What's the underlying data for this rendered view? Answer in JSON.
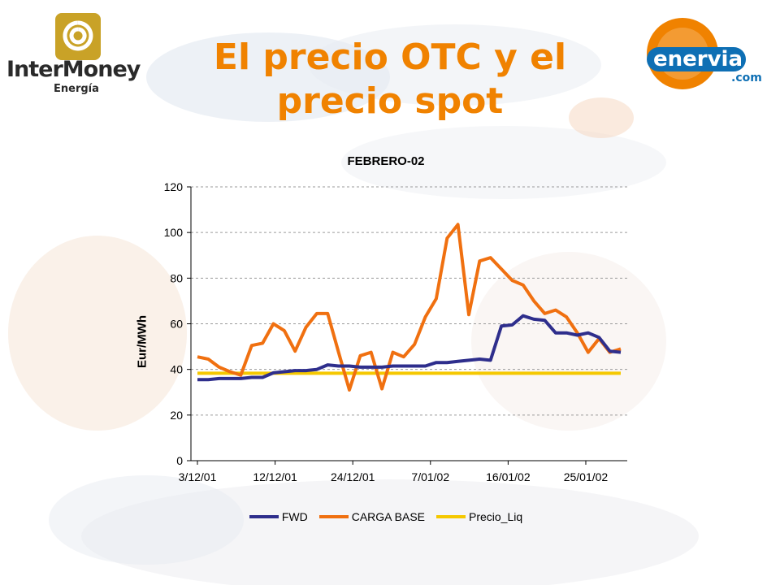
{
  "slide": {
    "title": "El precio OTC y el precio spot"
  },
  "logos": {
    "left_name": "InterMoney",
    "left_sub": "Energía",
    "right_name": "enervia",
    "right_domain": ".com"
  },
  "colors": {
    "title": "#F08200",
    "fwd": "#2E2E8C",
    "carga_base": "#F07010",
    "precio_liq": "#F5C800"
  },
  "chart_data": {
    "type": "line",
    "title": "FEBRERO-02",
    "xlabel": "",
    "ylabel": "Eur/MWh",
    "ylim": [
      0,
      120
    ],
    "yticks": [
      0,
      20,
      40,
      60,
      80,
      100,
      120
    ],
    "xticks": [
      "3/12/01",
      "12/12/01",
      "24/12/01",
      "7/01/02",
      "16/01/02",
      "25/01/02"
    ],
    "grid": "horizontal dashed",
    "legend": "bottom",
    "series": [
      {
        "name": "FWD",
        "values": [
          35.5,
          35.5,
          36,
          36,
          36,
          36.5,
          36.5,
          38.5,
          39,
          39.5,
          39.5,
          40,
          42,
          41.5,
          41.5,
          41,
          41,
          41,
          41.5,
          41.5,
          41.5,
          41.5,
          43,
          43,
          43.5,
          44,
          44.5,
          44,
          59,
          59.5,
          63.5,
          62,
          61.5,
          56,
          56,
          55,
          56,
          54,
          48,
          47.5
        ]
      },
      {
        "name": "CARGA BASE",
        "values": [
          45.5,
          44.5,
          41,
          39,
          37.5,
          50.5,
          51.5,
          60,
          57,
          48,
          58.5,
          64.5,
          64.5,
          47.5,
          31,
          46,
          47.5,
          31.5,
          47.5,
          45.5,
          51,
          63,
          71,
          97.5,
          103.5,
          64,
          87.5,
          89,
          84,
          79,
          77,
          70,
          64.5,
          66,
          63,
          56,
          47.5,
          53.5,
          47.5,
          49
        ]
      },
      {
        "name": "Precio_Liq",
        "values": [
          38.3,
          38.3,
          38.3,
          38.3,
          38.3,
          38.3,
          38.3,
          38.3,
          38.3,
          38.3,
          38.3,
          38.3,
          38.3,
          38.3,
          38.3,
          38.3,
          38.3,
          38.3,
          38.3,
          38.3,
          38.3,
          38.3,
          38.3,
          38.3,
          38.3,
          38.3,
          38.3,
          38.3,
          38.3,
          38.3,
          38.3,
          38.3,
          38.3,
          38.3,
          38.3,
          38.3,
          38.3,
          38.3,
          38.3,
          38.3
        ]
      }
    ]
  }
}
